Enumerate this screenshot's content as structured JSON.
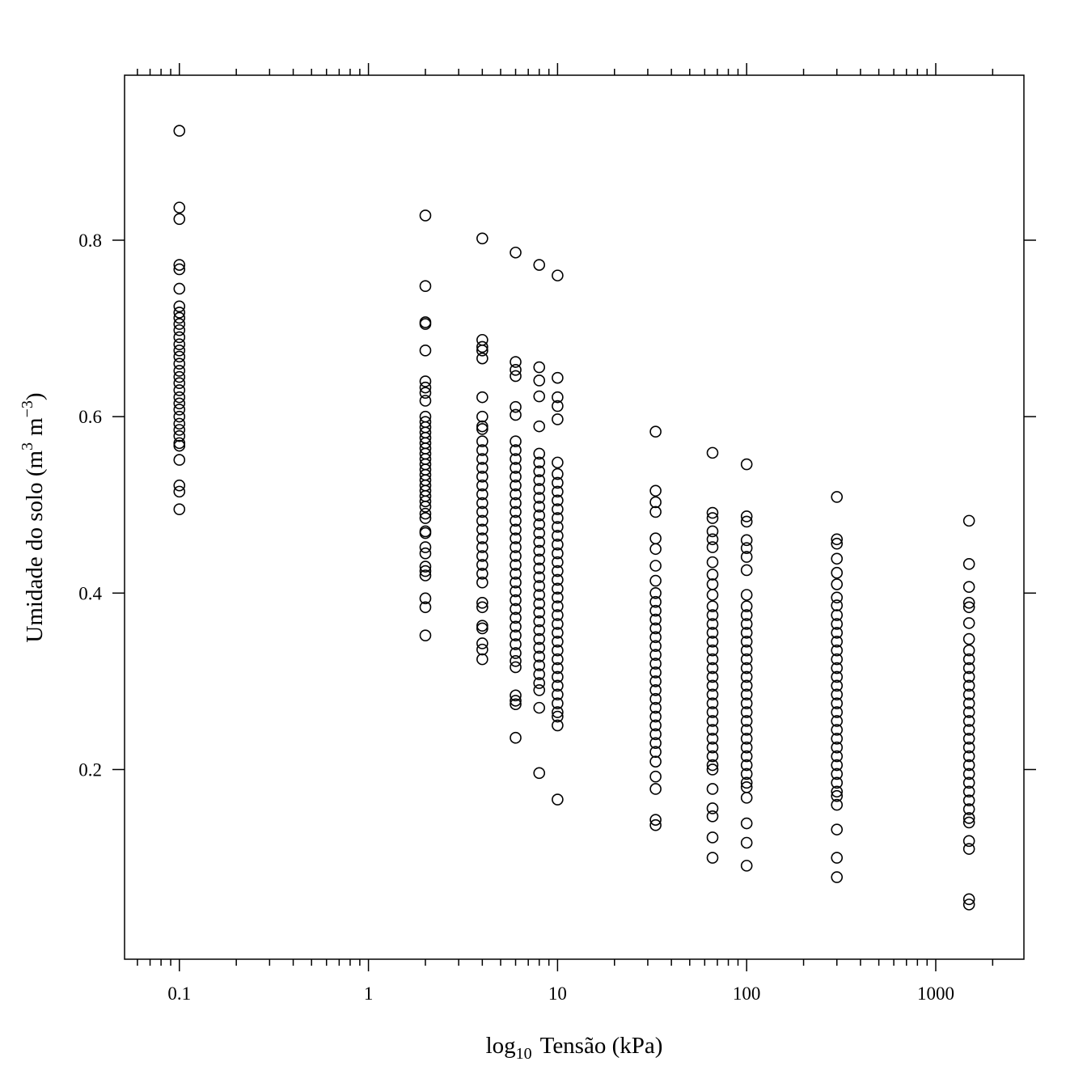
{
  "chart_data": {
    "type": "scatter",
    "xlabel": {
      "base": "log",
      "sub": "10",
      "rest": "Tensão (kPa)"
    },
    "ylabel": {
      "text": "Umidade do solo (m",
      "sup1": "3",
      "mid": "m",
      "sup2": "−3",
      "end": ")"
    },
    "xscale": "log",
    "xlim": [
      0.0513,
      2926
    ],
    "xticks": [
      0.1,
      1,
      10,
      100,
      1000
    ],
    "ylim": [
      -0.015,
      0.987
    ],
    "yticks": [
      0.2,
      0.4,
      0.6,
      0.8
    ],
    "color": "#000000",
    "columns": [
      {
        "x": 0.1,
        "y": [
          0.924,
          0.837,
          0.824,
          0.772,
          0.767,
          0.745,
          0.725,
          0.718,
          0.712,
          0.705,
          0.698,
          0.69,
          0.682,
          0.675,
          0.668,
          0.66,
          0.652,
          0.645,
          0.638,
          0.63,
          0.622,
          0.615,
          0.608,
          0.6,
          0.592,
          0.585,
          0.578,
          0.57,
          0.567,
          0.551,
          0.522,
          0.515,
          0.495
        ]
      },
      {
        "x": 2,
        "y": [
          0.828,
          0.748,
          0.707,
          0.705,
          0.675,
          0.64,
          0.633,
          0.627,
          0.618,
          0.6,
          0.594,
          0.588,
          0.582,
          0.576,
          0.57,
          0.564,
          0.558,
          0.552,
          0.546,
          0.54,
          0.534,
          0.528,
          0.522,
          0.516,
          0.51,
          0.504,
          0.498,
          0.49,
          0.485,
          0.47,
          0.468,
          0.452,
          0.445,
          0.43,
          0.425,
          0.42,
          0.394,
          0.384,
          0.352
        ]
      },
      {
        "x": 4,
        "y": [
          0.802,
          0.687,
          0.679,
          0.675,
          0.666,
          0.622,
          0.6,
          0.589,
          0.586,
          0.572,
          0.562,
          0.552,
          0.542,
          0.532,
          0.522,
          0.512,
          0.502,
          0.492,
          0.482,
          0.472,
          0.462,
          0.452,
          0.442,
          0.432,
          0.422,
          0.412,
          0.389,
          0.384,
          0.363,
          0.36,
          0.343,
          0.336,
          0.325
        ]
      },
      {
        "x": 6,
        "y": [
          0.786,
          0.662,
          0.653,
          0.646,
          0.611,
          0.602,
          0.572,
          0.562,
          0.552,
          0.542,
          0.532,
          0.522,
          0.512,
          0.502,
          0.492,
          0.482,
          0.472,
          0.462,
          0.452,
          0.442,
          0.432,
          0.422,
          0.412,
          0.402,
          0.392,
          0.382,
          0.372,
          0.362,
          0.352,
          0.342,
          0.332,
          0.323,
          0.316,
          0.284,
          0.278,
          0.274,
          0.236
        ]
      },
      {
        "x": 8,
        "y": [
          0.772,
          0.656,
          0.641,
          0.623,
          0.589,
          0.558,
          0.548,
          0.538,
          0.528,
          0.518,
          0.508,
          0.498,
          0.488,
          0.478,
          0.468,
          0.458,
          0.448,
          0.438,
          0.428,
          0.418,
          0.408,
          0.398,
          0.388,
          0.378,
          0.368,
          0.358,
          0.348,
          0.338,
          0.328,
          0.318,
          0.308,
          0.298,
          0.29,
          0.27,
          0.196
        ]
      },
      {
        "x": 10,
        "y": [
          0.76,
          0.644,
          0.622,
          0.612,
          0.597,
          0.548,
          0.535,
          0.525,
          0.515,
          0.505,
          0.495,
          0.485,
          0.475,
          0.465,
          0.455,
          0.445,
          0.435,
          0.425,
          0.415,
          0.405,
          0.395,
          0.385,
          0.375,
          0.365,
          0.355,
          0.345,
          0.335,
          0.325,
          0.315,
          0.305,
          0.295,
          0.285,
          0.275,
          0.265,
          0.26,
          0.25,
          0.166
        ]
      },
      {
        "x": 33,
        "y": [
          0.583,
          0.516,
          0.503,
          0.492,
          0.462,
          0.45,
          0.431,
          0.414,
          0.4,
          0.39,
          0.38,
          0.37,
          0.36,
          0.35,
          0.34,
          0.33,
          0.32,
          0.31,
          0.3,
          0.29,
          0.28,
          0.27,
          0.26,
          0.25,
          0.24,
          0.23,
          0.22,
          0.209,
          0.192,
          0.178,
          0.143,
          0.137
        ]
      },
      {
        "x": 66,
        "y": [
          0.559,
          0.491,
          0.485,
          0.47,
          0.461,
          0.452,
          0.435,
          0.421,
          0.41,
          0.398,
          0.385,
          0.375,
          0.365,
          0.355,
          0.345,
          0.335,
          0.325,
          0.315,
          0.305,
          0.295,
          0.285,
          0.275,
          0.265,
          0.255,
          0.245,
          0.235,
          0.225,
          0.215,
          0.205,
          0.2,
          0.178,
          0.156,
          0.147,
          0.123,
          0.1
        ]
      },
      {
        "x": 100,
        "y": [
          0.546,
          0.487,
          0.481,
          0.46,
          0.451,
          0.441,
          0.426,
          0.398,
          0.385,
          0.375,
          0.365,
          0.355,
          0.345,
          0.335,
          0.325,
          0.315,
          0.305,
          0.295,
          0.285,
          0.275,
          0.265,
          0.255,
          0.245,
          0.235,
          0.225,
          0.215,
          0.205,
          0.195,
          0.185,
          0.18,
          0.168,
          0.139,
          0.117,
          0.091
        ]
      },
      {
        "x": 300,
        "y": [
          0.509,
          0.461,
          0.456,
          0.439,
          0.423,
          0.41,
          0.395,
          0.386,
          0.375,
          0.365,
          0.355,
          0.345,
          0.335,
          0.325,
          0.315,
          0.305,
          0.295,
          0.285,
          0.275,
          0.265,
          0.255,
          0.245,
          0.235,
          0.225,
          0.215,
          0.205,
          0.195,
          0.185,
          0.175,
          0.17,
          0.16,
          0.132,
          0.1,
          0.078
        ]
      },
      {
        "x": 1500,
        "y": [
          0.482,
          0.433,
          0.407,
          0.389,
          0.384,
          0.366,
          0.348,
          0.335,
          0.325,
          0.315,
          0.305,
          0.295,
          0.285,
          0.275,
          0.265,
          0.255,
          0.245,
          0.235,
          0.225,
          0.215,
          0.205,
          0.195,
          0.185,
          0.175,
          0.165,
          0.155,
          0.145,
          0.14,
          0.119,
          0.11,
          0.053,
          0.047
        ]
      }
    ]
  }
}
